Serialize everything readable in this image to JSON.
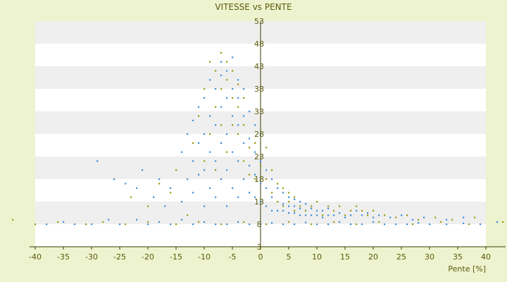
{
  "chart_data": {
    "type": "scatter",
    "title": "VITESSE vs PENTE",
    "xlabel": "Pente [%]",
    "ylabel": "",
    "xlim": [
      -40,
      40
    ],
    "ylim": [
      3,
      53
    ],
    "x_ticks": [
      "-40",
      "-35",
      "-30",
      "-25",
      "-20",
      "-15",
      "-10",
      "-5",
      "0",
      "5",
      "10",
      "15",
      "20",
      "25",
      "30",
      "35",
      "40"
    ],
    "y_ticks": [
      "3",
      "8",
      "13",
      "18",
      "23",
      "28",
      "33",
      "38",
      "43",
      "48",
      "53"
    ],
    "grid": "horizontal bands",
    "colors": {
      "page_background": "#eef3cf",
      "plot_band_light": "#ffffff",
      "plot_band_dark": "#efefef",
      "series_blue": "#3d8fdc",
      "series_olive": "#9a9a10",
      "axis": "#3b3b00",
      "text": "#5a5a0a"
    },
    "series": [
      {
        "color": "#3d8fdc",
        "points": [
          [
            -38,
            8
          ],
          [
            -35,
            8.5
          ],
          [
            -33,
            8
          ],
          [
            -30,
            8
          ],
          [
            -27,
            9
          ],
          [
            -25,
            8
          ],
          [
            -22,
            9
          ],
          [
            -20,
            8
          ],
          [
            -18,
            8.5
          ],
          [
            -16,
            8
          ],
          [
            -14,
            9
          ],
          [
            -12,
            8
          ],
          [
            -10,
            8.5
          ],
          [
            -8,
            8
          ],
          [
            -6,
            8
          ],
          [
            -4,
            8.5
          ],
          [
            -2,
            8
          ],
          [
            0,
            8
          ],
          [
            2,
            8.3
          ],
          [
            4,
            8
          ],
          [
            6,
            8
          ],
          [
            8,
            8.4
          ],
          [
            10,
            8
          ],
          [
            12,
            8
          ],
          [
            14,
            8.5
          ],
          [
            16,
            8
          ],
          [
            18,
            8
          ],
          [
            20,
            8.5
          ],
          [
            22,
            8
          ],
          [
            24,
            8
          ],
          [
            26,
            8
          ],
          [
            28,
            8.3
          ],
          [
            30,
            8
          ],
          [
            33,
            8
          ],
          [
            36,
            8.2
          ],
          [
            39,
            8
          ],
          [
            42,
            8.5
          ],
          [
            -29,
            22
          ],
          [
            -26,
            18
          ],
          [
            -24,
            17
          ],
          [
            -22,
            16
          ],
          [
            -21,
            20
          ],
          [
            -19,
            14
          ],
          [
            -18,
            18
          ],
          [
            -17,
            12
          ],
          [
            -16,
            16
          ],
          [
            -15,
            20
          ],
          [
            -14,
            13
          ],
          [
            -14,
            24
          ],
          [
            -13,
            18
          ],
          [
            -13,
            28
          ],
          [
            -12,
            15
          ],
          [
            -12,
            22
          ],
          [
            -12,
            31
          ],
          [
            -11,
            19
          ],
          [
            -11,
            26
          ],
          [
            -11,
            34
          ],
          [
            -10,
            12
          ],
          [
            -10,
            20
          ],
          [
            -10,
            28
          ],
          [
            -10,
            36
          ],
          [
            -9,
            16
          ],
          [
            -9,
            24
          ],
          [
            -9,
            32
          ],
          [
            -9,
            40
          ],
          [
            -8,
            14
          ],
          [
            -8,
            22
          ],
          [
            -8,
            30
          ],
          [
            -8,
            38
          ],
          [
            -7,
            18
          ],
          [
            -7,
            26
          ],
          [
            -7,
            34
          ],
          [
            -7,
            41
          ],
          [
            -7,
            44
          ],
          [
            -6,
            12
          ],
          [
            -6,
            20
          ],
          [
            -6,
            28
          ],
          [
            -6,
            36
          ],
          [
            -6,
            42
          ],
          [
            -5,
            16
          ],
          [
            -5,
            24
          ],
          [
            -5,
            32
          ],
          [
            -5,
            38
          ],
          [
            -5,
            45
          ],
          [
            -4,
            14
          ],
          [
            -4,
            22
          ],
          [
            -4,
            30
          ],
          [
            -4,
            36
          ],
          [
            -4,
            40
          ],
          [
            -3,
            18
          ],
          [
            -3,
            26
          ],
          [
            -3,
            32
          ],
          [
            -3,
            38
          ],
          [
            -2,
            15
          ],
          [
            -2,
            21
          ],
          [
            -2,
            27
          ],
          [
            -2,
            33
          ],
          [
            -1,
            14
          ],
          [
            -1,
            19
          ],
          [
            -1,
            24
          ],
          [
            -1,
            30
          ],
          [
            0,
            13
          ],
          [
            0,
            17
          ],
          [
            0,
            22
          ],
          [
            0,
            28
          ],
          [
            1,
            12
          ],
          [
            1,
            16
          ],
          [
            1,
            20
          ],
          [
            2,
            11
          ],
          [
            2,
            14
          ],
          [
            2,
            18
          ],
          [
            3,
            11
          ],
          [
            3,
            13
          ],
          [
            3,
            16
          ],
          [
            4,
            11
          ],
          [
            4,
            12.5
          ],
          [
            4,
            15
          ],
          [
            5,
            10.5
          ],
          [
            5,
            12
          ],
          [
            5,
            14
          ],
          [
            6,
            10.5
          ],
          [
            6,
            12
          ],
          [
            6,
            13.5
          ],
          [
            7,
            10
          ],
          [
            7,
            11.5
          ],
          [
            7,
            13
          ],
          [
            8,
            10
          ],
          [
            8,
            11
          ],
          [
            8,
            12.5
          ],
          [
            9,
            10
          ],
          [
            9,
            11.5
          ],
          [
            10,
            10
          ],
          [
            10,
            11
          ],
          [
            11,
            9.5
          ],
          [
            11,
            11
          ],
          [
            12,
            10
          ],
          [
            12,
            11.5
          ],
          [
            13,
            10
          ],
          [
            14,
            10.5
          ],
          [
            15,
            9.5
          ],
          [
            16,
            10
          ],
          [
            17,
            11
          ],
          [
            18,
            10
          ],
          [
            19,
            10.5
          ],
          [
            20,
            9.5
          ],
          [
            21,
            10
          ],
          [
            23,
            9.5
          ],
          [
            25,
            10
          ],
          [
            27,
            9
          ],
          [
            29,
            9.5
          ],
          [
            33,
            9
          ],
          [
            36,
            9.5
          ]
        ]
      },
      {
        "color": "#9a9a10",
        "points": [
          [
            -44,
            9
          ],
          [
            -40,
            8
          ],
          [
            -36,
            8.5
          ],
          [
            -31,
            8
          ],
          [
            -28,
            8.5
          ],
          [
            -24,
            8
          ],
          [
            -20,
            8.5
          ],
          [
            -15,
            8
          ],
          [
            -11,
            8.5
          ],
          [
            -7,
            8
          ],
          [
            -3,
            8.5
          ],
          [
            1,
            8
          ],
          [
            5,
            8.5
          ],
          [
            9,
            8
          ],
          [
            13,
            8.5
          ],
          [
            17,
            8
          ],
          [
            21,
            8.5
          ],
          [
            27,
            8
          ],
          [
            32,
            8.5
          ],
          [
            37,
            8
          ],
          [
            43,
            8.5
          ],
          [
            -23,
            14
          ],
          [
            -20,
            12
          ],
          [
            -18,
            17
          ],
          [
            -16,
            15
          ],
          [
            -15,
            20
          ],
          [
            -13,
            10
          ],
          [
            -12,
            26
          ],
          [
            -11,
            32
          ],
          [
            -10,
            22
          ],
          [
            -10,
            38
          ],
          [
            -9,
            28
          ],
          [
            -9,
            44
          ],
          [
            -8,
            20
          ],
          [
            -8,
            34
          ],
          [
            -8,
            42
          ],
          [
            -7,
            30
          ],
          [
            -7,
            38
          ],
          [
            -7,
            46
          ],
          [
            -6,
            24
          ],
          [
            -6,
            40
          ],
          [
            -6,
            44
          ],
          [
            -5,
            30
          ],
          [
            -5,
            36
          ],
          [
            -5,
            42
          ],
          [
            -4,
            28
          ],
          [
            -4,
            34
          ],
          [
            -4,
            39
          ],
          [
            -3,
            22
          ],
          [
            -3,
            30
          ],
          [
            -3,
            36
          ],
          [
            -2,
            19
          ],
          [
            -2,
            25
          ],
          [
            -1,
            18
          ],
          [
            -1,
            26
          ],
          [
            0,
            21
          ],
          [
            1,
            18
          ],
          [
            1,
            25
          ],
          [
            2,
            15
          ],
          [
            2,
            20
          ],
          [
            3,
            13
          ],
          [
            3,
            17
          ],
          [
            4,
            12
          ],
          [
            4,
            16
          ],
          [
            5,
            13
          ],
          [
            5,
            15
          ],
          [
            6,
            11
          ],
          [
            6,
            14
          ],
          [
            7,
            12
          ],
          [
            8,
            11
          ],
          [
            9,
            12
          ],
          [
            10,
            13
          ],
          [
            11,
            10
          ],
          [
            12,
            12
          ],
          [
            13,
            11
          ],
          [
            14,
            12
          ],
          [
            15,
            10
          ],
          [
            16,
            11
          ],
          [
            17,
            12
          ],
          [
            18,
            11
          ],
          [
            19,
            10
          ],
          [
            20,
            11
          ],
          [
            22,
            10
          ],
          [
            24,
            9.5
          ],
          [
            26,
            10
          ],
          [
            28,
            9
          ],
          [
            31,
            9.5
          ],
          [
            34,
            9
          ],
          [
            38,
            9.5
          ]
        ]
      }
    ]
  }
}
